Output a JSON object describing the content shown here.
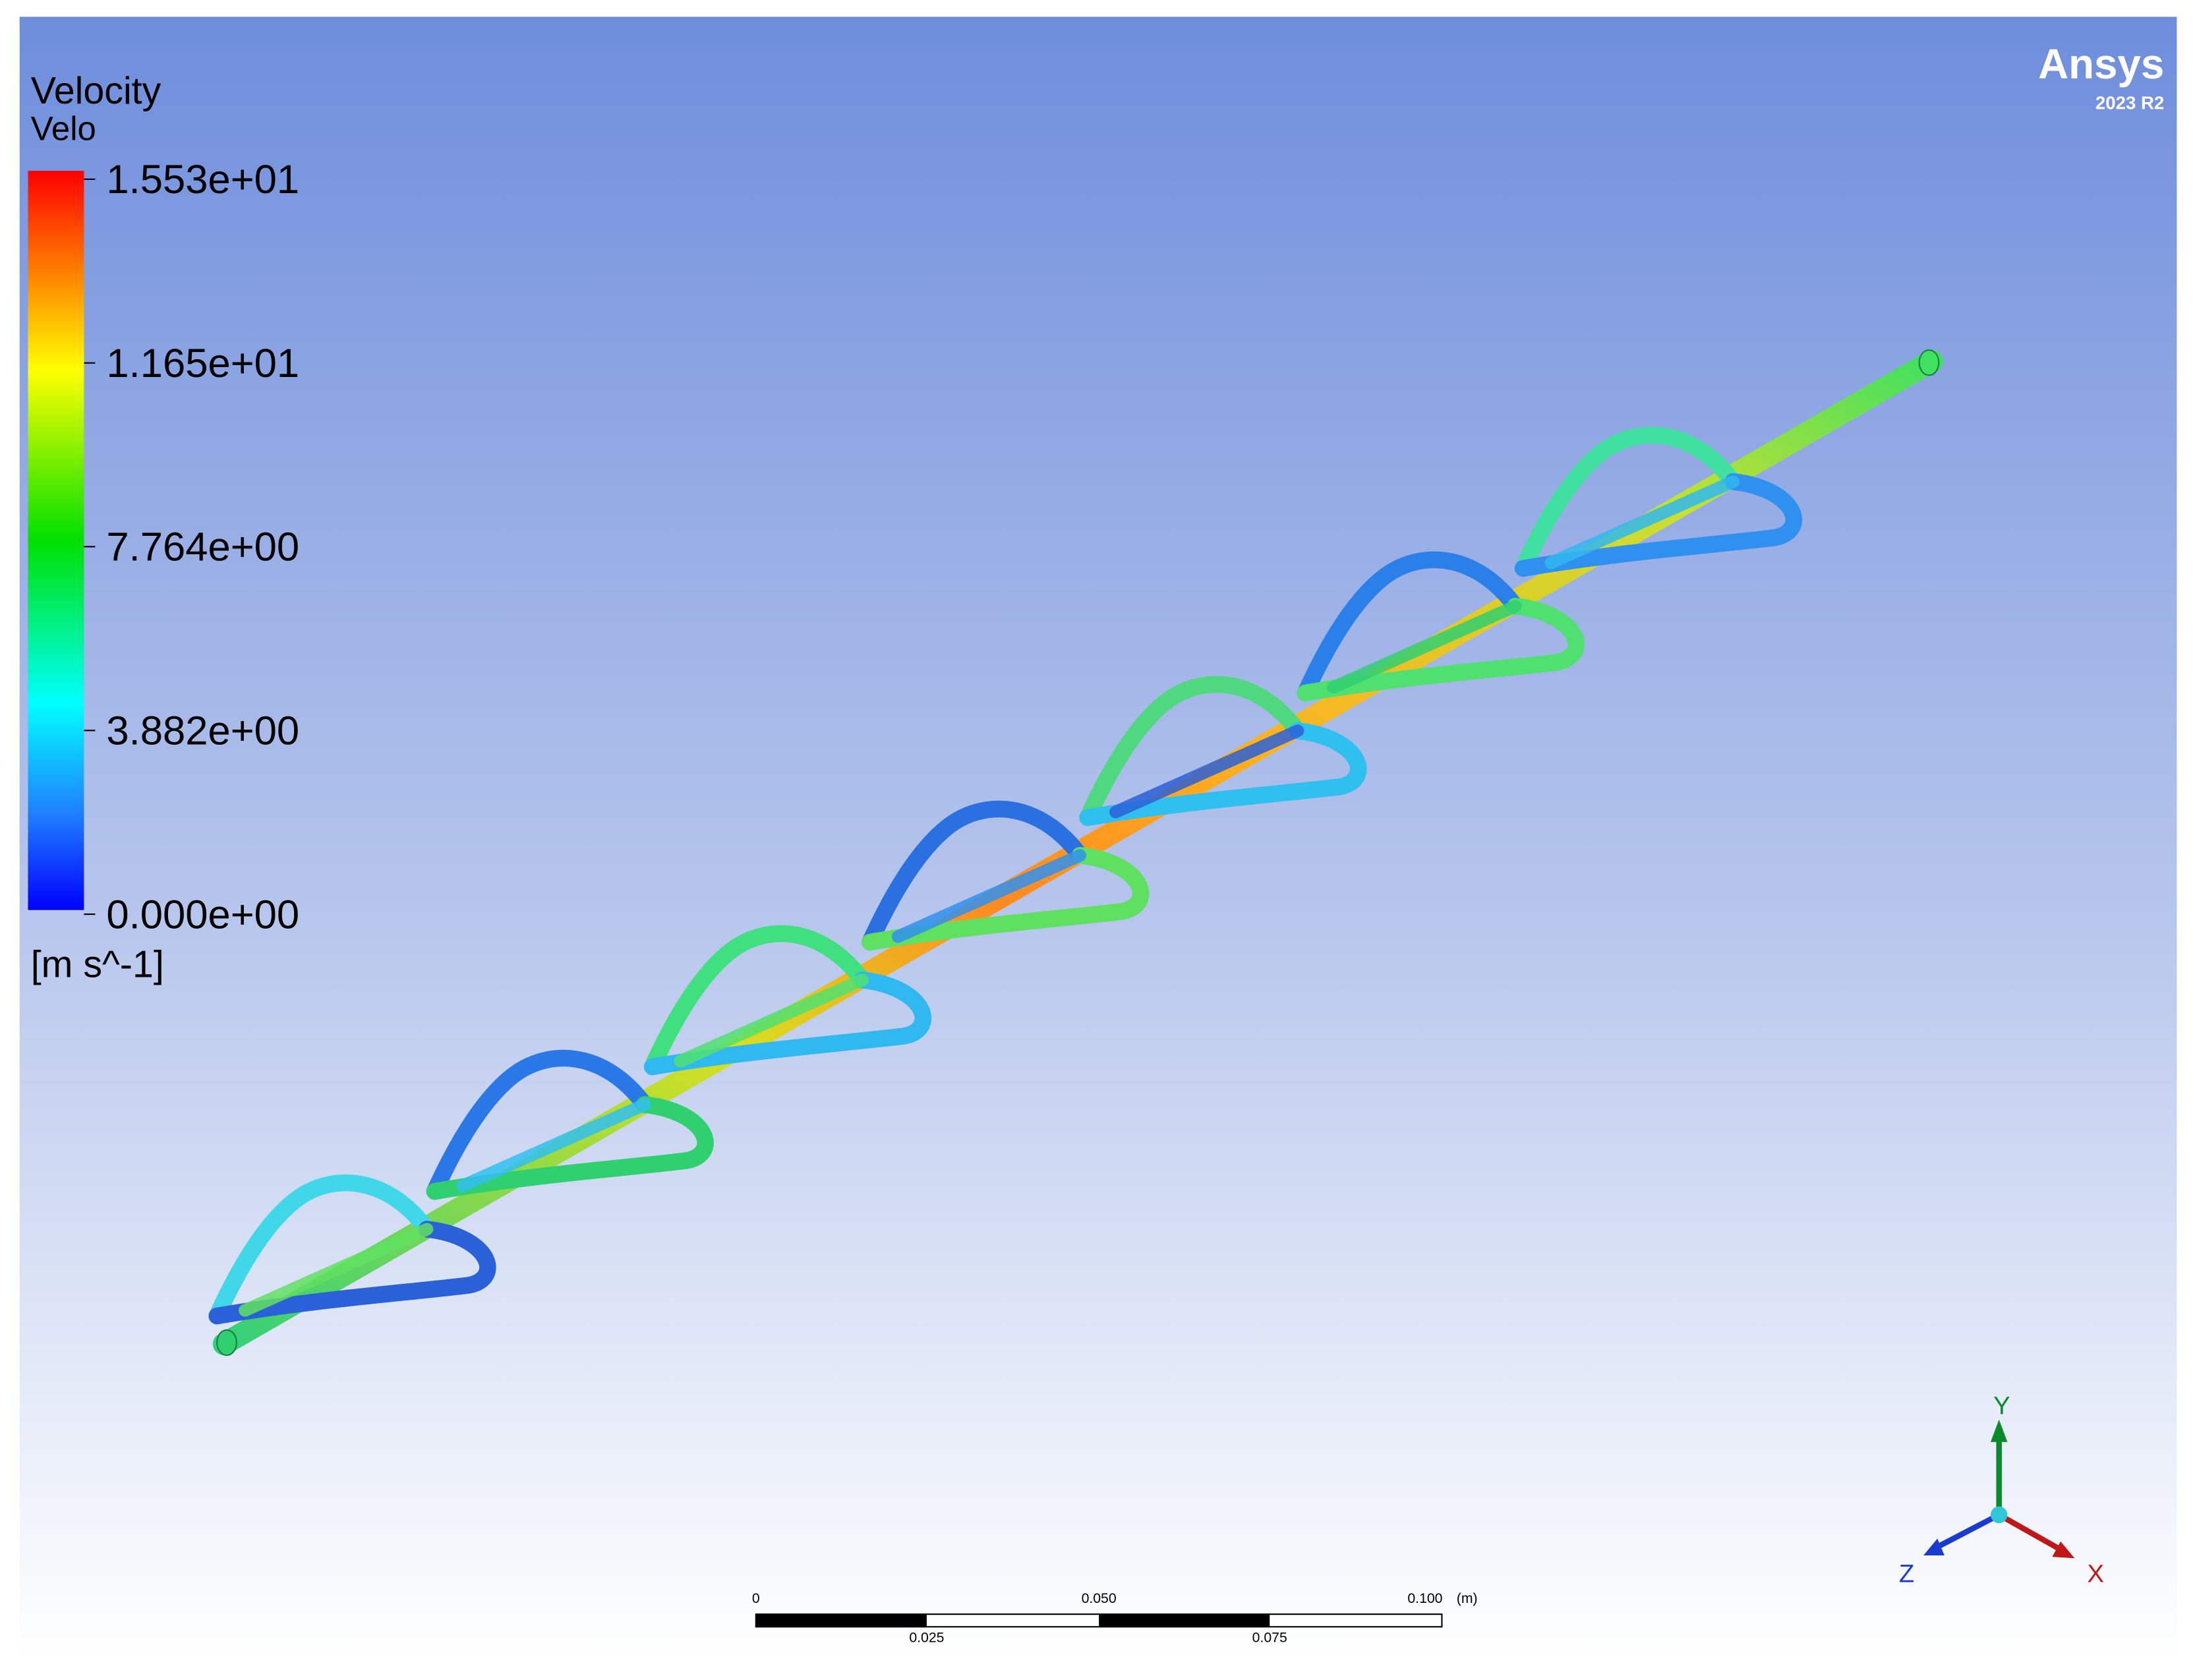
{
  "legend": {
    "title": "Velocity",
    "variable": "Velo",
    "labels": [
      "1.553e+01",
      "1.165e+01",
      "7.764e+00",
      "3.882e+00",
      "0.000e+00"
    ],
    "unit": "[m s^-1]"
  },
  "logo": {
    "name": "Ansys",
    "version": "2023 R2"
  },
  "scale_bar": {
    "top_labels": [
      "0",
      "0.050",
      "0.100"
    ],
    "bottom_labels": [
      "0.025",
      "0.075"
    ],
    "unit": "(m)"
  },
  "triad": {
    "y": "Y",
    "z": "Z",
    "x": "X"
  }
}
